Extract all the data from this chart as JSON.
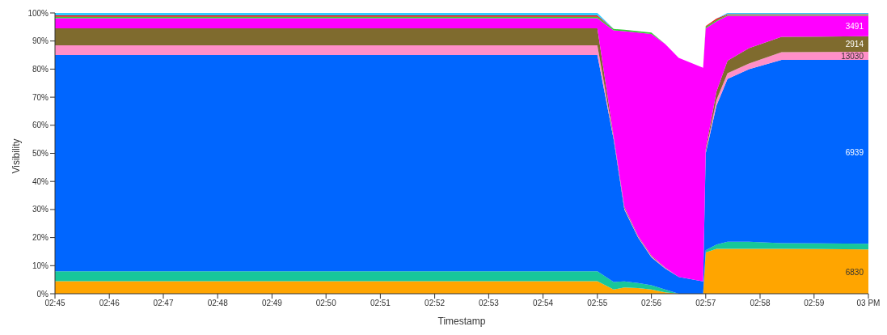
{
  "chart_data": {
    "type": "area",
    "stacked": true,
    "xlabel": "Timestamp",
    "ylabel": "Visibility",
    "legend": false,
    "grid": false,
    "x": [
      2.75,
      2.9167,
      2.9217,
      2.925,
      2.9292,
      2.9333,
      2.9375,
      2.9417,
      2.9492,
      2.95,
      2.9533,
      2.9567,
      2.9633,
      2.9733,
      3.0
    ],
    "xlim": [
      2.75,
      3.0
    ],
    "xticks": [
      {
        "value": 2.75,
        "label": "02:45"
      },
      {
        "value": 2.7667,
        "label": "02:46"
      },
      {
        "value": 2.7833,
        "label": "02:47"
      },
      {
        "value": 2.8,
        "label": "02:48"
      },
      {
        "value": 2.8167,
        "label": "02:49"
      },
      {
        "value": 2.8333,
        "label": "02:50"
      },
      {
        "value": 2.85,
        "label": "02:51"
      },
      {
        "value": 2.8667,
        "label": "02:52"
      },
      {
        "value": 2.8833,
        "label": "02:53"
      },
      {
        "value": 2.9,
        "label": "02:54"
      },
      {
        "value": 2.9167,
        "label": "02:55"
      },
      {
        "value": 2.9333,
        "label": "02:56"
      },
      {
        "value": 2.95,
        "label": "02:57"
      },
      {
        "value": 2.9667,
        "label": "02:58"
      },
      {
        "value": 2.9833,
        "label": "02:59"
      },
      {
        "value": 3.0,
        "label": "03 PM"
      }
    ],
    "ylim": [
      0,
      100
    ],
    "yticks": [
      {
        "value": 0,
        "label": "0%"
      },
      {
        "value": 10,
        "label": "10%"
      },
      {
        "value": 20,
        "label": "20%"
      },
      {
        "value": 30,
        "label": "30%"
      },
      {
        "value": 40,
        "label": "40%"
      },
      {
        "value": 50,
        "label": "50%"
      },
      {
        "value": 60,
        "label": "60%"
      },
      {
        "value": 70,
        "label": "70%"
      },
      {
        "value": 80,
        "label": "80%"
      },
      {
        "value": 90,
        "label": "90%"
      },
      {
        "value": 100,
        "label": "100%"
      }
    ],
    "series": [
      {
        "name": "6830",
        "color": "#ffa500",
        "values": [
          4.5,
          4.5,
          1.5,
          2.2,
          2,
          1.5,
          0.5,
          0,
          0,
          14.7,
          16,
          16,
          16,
          16,
          15.8
        ]
      },
      {
        "color": "#17c79a",
        "values": [
          3.5,
          3.5,
          2.7,
          2.2,
          1.8,
          1.5,
          1,
          0,
          0,
          0.8,
          1.5,
          2.5,
          2.5,
          2,
          2
        ]
      },
      {
        "name": "6939",
        "color": "#0066ff",
        "values": [
          77,
          77,
          50.8,
          25.6,
          16.2,
          10,
          7.5,
          6,
          4.4,
          34.5,
          49.5,
          58,
          61.5,
          65.3,
          65.5
        ]
      },
      {
        "name": "13030",
        "color": "#ff8fc8",
        "values": [
          3.5,
          3.5,
          0.5,
          0.5,
          0.3,
          0.3,
          0.2,
          0,
          0,
          0.5,
          2,
          2,
          2,
          2.7,
          2.9
        ]
      },
      {
        "name": "2914",
        "color": "#7f6b2e",
        "values": [
          6,
          6,
          0.5,
          0.5,
          0.3,
          0.3,
          0.2,
          0,
          0,
          1,
          3,
          4.5,
          5.5,
          5.5,
          5.5
        ]
      },
      {
        "name": "3491",
        "color": "#ff00ff",
        "values": [
          3.6,
          3.6,
          37.8,
          62.5,
          72.4,
          78.9,
          79.6,
          78,
          76.1,
          43,
          25,
          16,
          11.5,
          7.5,
          7.3
        ]
      },
      {
        "color": "#33cc33",
        "values": [
          0.5,
          0.5,
          0.5,
          0.5,
          0.5,
          0.5,
          0,
          0,
          0,
          0.5,
          0.5,
          0.3,
          0.3,
          0.3,
          0.3
        ]
      },
      {
        "color": "#e01a1a",
        "values": [
          0.5,
          0.5,
          0,
          0,
          0,
          0,
          0,
          0,
          0,
          0.3,
          0.5,
          0.3,
          0.3,
          0.3,
          0.3
        ]
      },
      {
        "color": "#33ccff",
        "values": [
          0.9,
          0.9,
          0,
          0,
          0,
          0,
          0,
          0,
          0,
          0,
          0,
          0.4,
          0.4,
          0.4,
          0.4
        ]
      }
    ]
  }
}
